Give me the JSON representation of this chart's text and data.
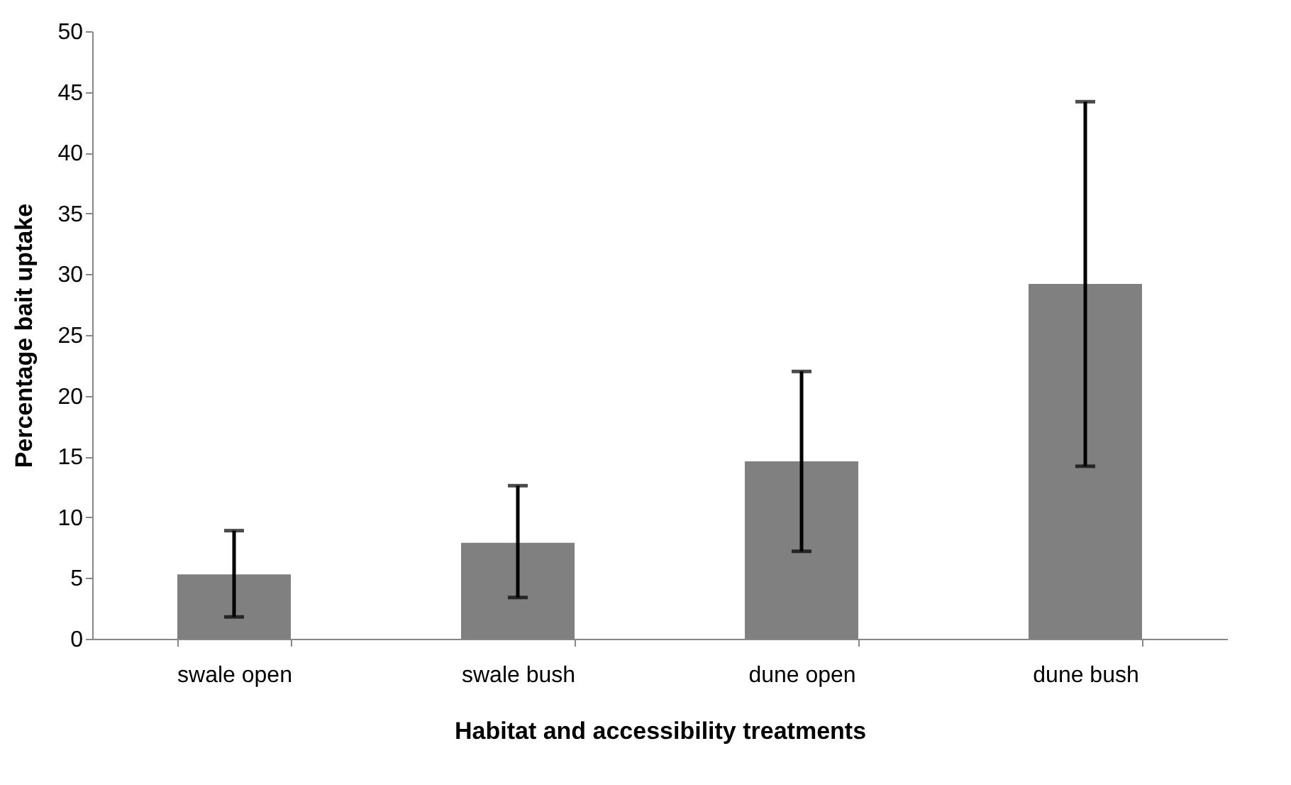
{
  "chart_data": {
    "type": "bar",
    "xlabel": "Habitat and accessibility treatments",
    "ylabel": "Percentage bait uptake",
    "categories": [
      "swale open",
      "swale bush",
      "dune open",
      "dune bush"
    ],
    "values": [
      5.3,
      7.9,
      14.6,
      29.2
    ],
    "errors": [
      [
        1.8,
        8.9
      ],
      [
        3.4,
        12.6
      ],
      [
        7.2,
        22.0
      ],
      [
        14.2,
        44.2
      ]
    ],
    "color": "#808080",
    "ylim": [
      0,
      50
    ],
    "yticks": [
      0,
      5,
      10,
      15,
      20,
      25,
      30,
      35,
      40,
      45,
      50
    ],
    "grid": false
  }
}
